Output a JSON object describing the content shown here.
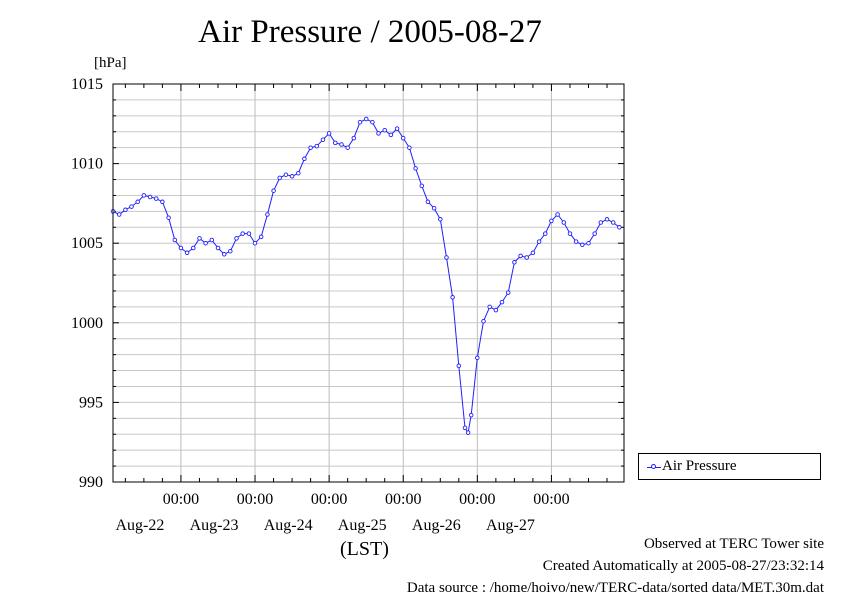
{
  "title": "Air Pressure / 2005-08-27",
  "chart_data": {
    "type": "line",
    "title": "Air Pressure / 2005-08-27",
    "ylabel": "[hPa]",
    "xlabel": "(LST)",
    "ylim": [
      990,
      1015
    ],
    "yticks": [
      990,
      995,
      1000,
      1005,
      1010,
      1015
    ],
    "xlim": [
      "2005-08-21T02:00",
      "2005-08-27T23:30"
    ],
    "xticks": [
      {
        "time": "00:00",
        "date": "Aug-22",
        "at": "2005-08-22T00:00"
      },
      {
        "time": "00:00",
        "date": "Aug-23",
        "at": "2005-08-23T00:00"
      },
      {
        "time": "00:00",
        "date": "Aug-24",
        "at": "2005-08-24T00:00"
      },
      {
        "time": "00:00",
        "date": "Aug-25",
        "at": "2005-08-25T00:00"
      },
      {
        "time": "00:00",
        "date": "Aug-26",
        "at": "2005-08-26T00:00"
      },
      {
        "time": "00:00",
        "date": "Aug-27",
        "at": "2005-08-27T00:00"
      }
    ],
    "grid": true,
    "legend_position": "right",
    "series": [
      {
        "name": "Air Pressure",
        "color": "#2020ff",
        "marker": "open-circle",
        "points": [
          [
            "2005-08-21T02:00",
            1007.0
          ],
          [
            "2005-08-21T04:00",
            1006.8
          ],
          [
            "2005-08-21T06:00",
            1007.1
          ],
          [
            "2005-08-21T08:00",
            1007.3
          ],
          [
            "2005-08-21T10:00",
            1007.6
          ],
          [
            "2005-08-21T12:00",
            1008.0
          ],
          [
            "2005-08-21T14:00",
            1007.9
          ],
          [
            "2005-08-21T16:00",
            1007.8
          ],
          [
            "2005-08-21T18:00",
            1007.6
          ],
          [
            "2005-08-21T20:00",
            1006.6
          ],
          [
            "2005-08-21T22:00",
            1005.2
          ],
          [
            "2005-08-22T00:00",
            1004.7
          ],
          [
            "2005-08-22T02:00",
            1004.4
          ],
          [
            "2005-08-22T04:00",
            1004.7
          ],
          [
            "2005-08-22T06:00",
            1005.3
          ],
          [
            "2005-08-22T08:00",
            1005.0
          ],
          [
            "2005-08-22T10:00",
            1005.2
          ],
          [
            "2005-08-22T12:00",
            1004.7
          ],
          [
            "2005-08-22T14:00",
            1004.3
          ],
          [
            "2005-08-22T16:00",
            1004.5
          ],
          [
            "2005-08-22T18:00",
            1005.3
          ],
          [
            "2005-08-22T20:00",
            1005.6
          ],
          [
            "2005-08-22T22:00",
            1005.6
          ],
          [
            "2005-08-23T00:00",
            1005.0
          ],
          [
            "2005-08-23T02:00",
            1005.4
          ],
          [
            "2005-08-23T04:00",
            1006.8
          ],
          [
            "2005-08-23T06:00",
            1008.3
          ],
          [
            "2005-08-23T08:00",
            1009.1
          ],
          [
            "2005-08-23T10:00",
            1009.3
          ],
          [
            "2005-08-23T12:00",
            1009.2
          ],
          [
            "2005-08-23T14:00",
            1009.4
          ],
          [
            "2005-08-23T16:00",
            1010.3
          ],
          [
            "2005-08-23T18:00",
            1011.0
          ],
          [
            "2005-08-23T20:00",
            1011.1
          ],
          [
            "2005-08-23T22:00",
            1011.5
          ],
          [
            "2005-08-24T00:00",
            1011.9
          ],
          [
            "2005-08-24T02:00",
            1011.3
          ],
          [
            "2005-08-24T04:00",
            1011.2
          ],
          [
            "2005-08-24T06:00",
            1011.0
          ],
          [
            "2005-08-24T08:00",
            1011.6
          ],
          [
            "2005-08-24T10:00",
            1012.6
          ],
          [
            "2005-08-24T12:00",
            1012.8
          ],
          [
            "2005-08-24T14:00",
            1012.6
          ],
          [
            "2005-08-24T16:00",
            1011.9
          ],
          [
            "2005-08-24T18:00",
            1012.1
          ],
          [
            "2005-08-24T20:00",
            1011.8
          ],
          [
            "2005-08-24T22:00",
            1012.2
          ],
          [
            "2005-08-25T00:00",
            1011.6
          ],
          [
            "2005-08-25T02:00",
            1011.0
          ],
          [
            "2005-08-25T04:00",
            1009.7
          ],
          [
            "2005-08-25T06:00",
            1008.6
          ],
          [
            "2005-08-25T08:00",
            1007.6
          ],
          [
            "2005-08-25T10:00",
            1007.2
          ],
          [
            "2005-08-25T12:00",
            1006.5
          ],
          [
            "2005-08-25T14:00",
            1004.1
          ],
          [
            "2005-08-25T16:00",
            1001.6
          ],
          [
            "2005-08-25T18:00",
            997.3
          ],
          [
            "2005-08-25T20:00",
            993.4
          ],
          [
            "2005-08-25T21:00",
            993.1
          ],
          [
            "2005-08-25T22:00",
            994.2
          ],
          [
            "2005-08-26T00:00",
            997.8
          ],
          [
            "2005-08-26T02:00",
            1000.1
          ],
          [
            "2005-08-26T04:00",
            1001.0
          ],
          [
            "2005-08-26T06:00",
            1000.8
          ],
          [
            "2005-08-26T08:00",
            1001.3
          ],
          [
            "2005-08-26T10:00",
            1001.9
          ],
          [
            "2005-08-26T12:00",
            1003.8
          ],
          [
            "2005-08-26T14:00",
            1004.2
          ],
          [
            "2005-08-26T16:00",
            1004.1
          ],
          [
            "2005-08-26T18:00",
            1004.4
          ],
          [
            "2005-08-26T20:00",
            1005.1
          ],
          [
            "2005-08-26T22:00",
            1005.6
          ],
          [
            "2005-08-27T00:00",
            1006.4
          ],
          [
            "2005-08-27T02:00",
            1006.8
          ],
          [
            "2005-08-27T04:00",
            1006.3
          ],
          [
            "2005-08-27T06:00",
            1005.6
          ],
          [
            "2005-08-27T08:00",
            1005.1
          ],
          [
            "2005-08-27T10:00",
            1004.9
          ],
          [
            "2005-08-27T12:00",
            1005.0
          ],
          [
            "2005-08-27T14:00",
            1005.6
          ],
          [
            "2005-08-27T16:00",
            1006.3
          ],
          [
            "2005-08-27T18:00",
            1006.5
          ],
          [
            "2005-08-27T20:00",
            1006.3
          ],
          [
            "2005-08-27T22:00",
            1006.0
          ]
        ]
      }
    ]
  },
  "legend": {
    "label": "Air Pressure"
  },
  "footer": {
    "line1": "Observed at TERC Tower site",
    "line2": "Created Automatically at 2005-08-27/23:32:14",
    "line3": "Data source : /home/hoivo/new/TERC-data/sorted data/MET.30m.dat"
  }
}
